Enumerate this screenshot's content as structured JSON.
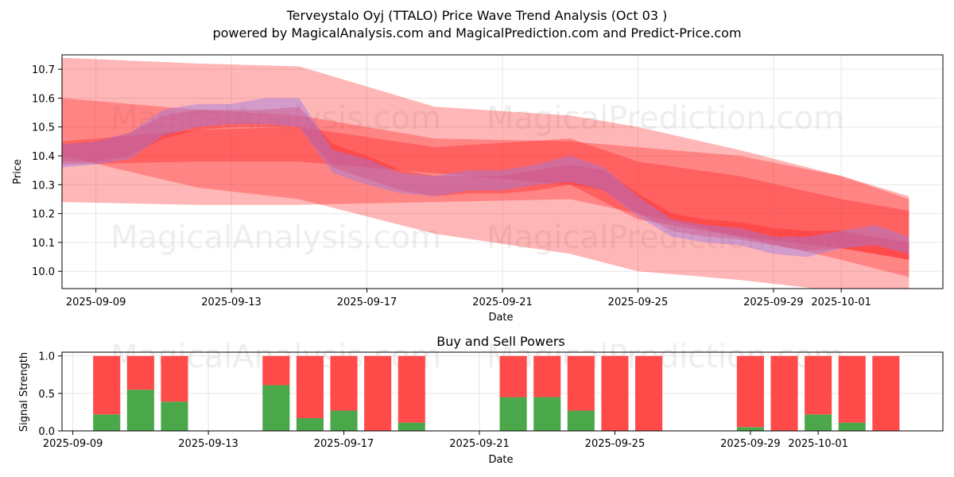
{
  "title_line1": "Terveystalo Oyj (TTALO) Price Wave Trend Analysis (Oct 03 )",
  "title_line2": "powered by MagicalAnalysis.com and MagicalPrediction.com and Predict-Price.com",
  "watermarks": [
    "MagicalAnalysis.com",
    "MagicalPrediction.com"
  ],
  "colors": {
    "band_red": "#ff2020",
    "band_purple": "#9b7be0",
    "buy": "#4aa84a",
    "sell": "#ff4a4a",
    "grid": "#e6e6e6"
  },
  "chart_data": [
    {
      "type": "area",
      "title": "",
      "xlabel": "Date",
      "ylabel": "Price",
      "x_range": [
        "2025-09-08",
        "2025-10-04"
      ],
      "ylim": [
        9.94,
        10.75
      ],
      "x_ticks": [
        "2025-09-09",
        "2025-09-13",
        "2025-09-17",
        "2025-09-21",
        "2025-09-25",
        "2025-09-29",
        "2025-10-01"
      ],
      "y_ticks": [
        "10.0",
        "10.1",
        "10.2",
        "10.3",
        "10.4",
        "10.5",
        "10.6",
        "10.7"
      ],
      "series": [
        {
          "name": "wide-band-1",
          "x": [
            "2025-09-08",
            "2025-09-12",
            "2025-09-15",
            "2025-09-19",
            "2025-09-23",
            "2025-09-25",
            "2025-09-28",
            "2025-10-01",
            "2025-10-03"
          ],
          "low": [
            10.24,
            10.23,
            10.23,
            10.24,
            10.25,
            10.2,
            10.12,
            10.04,
            9.98
          ],
          "high": [
            10.74,
            10.72,
            10.71,
            10.57,
            10.54,
            10.5,
            10.42,
            10.33,
            10.26
          ]
        },
        {
          "name": "wide-band-2",
          "x": [
            "2025-09-08",
            "2025-09-12",
            "2025-09-15",
            "2025-09-19",
            "2025-09-23",
            "2025-09-25",
            "2025-09-28",
            "2025-10-01",
            "2025-10-03"
          ],
          "low": [
            10.4,
            10.29,
            10.25,
            10.13,
            10.06,
            10.0,
            9.97,
            9.93,
            9.9
          ],
          "high": [
            10.6,
            10.56,
            10.54,
            10.46,
            10.45,
            10.43,
            10.4,
            10.33,
            10.25
          ]
        },
        {
          "name": "mid-band",
          "x": [
            "2025-09-08",
            "2025-09-12",
            "2025-09-15",
            "2025-09-19",
            "2025-09-23",
            "2025-09-25",
            "2025-09-28",
            "2025-10-01",
            "2025-10-03"
          ],
          "low": [
            10.37,
            10.38,
            10.38,
            10.34,
            10.3,
            10.18,
            10.12,
            10.08,
            10.04
          ],
          "high": [
            10.45,
            10.49,
            10.5,
            10.43,
            10.46,
            10.38,
            10.33,
            10.25,
            10.21
          ]
        },
        {
          "name": "price-wave-red",
          "x": [
            "2025-09-08",
            "2025-09-09",
            "2025-09-10",
            "2025-09-11",
            "2025-09-12",
            "2025-09-13",
            "2025-09-14",
            "2025-09-15",
            "2025-09-16",
            "2025-09-17",
            "2025-09-18",
            "2025-09-19",
            "2025-09-20",
            "2025-09-21",
            "2025-09-22",
            "2025-09-23",
            "2025-09-24",
            "2025-09-25",
            "2025-09-26",
            "2025-09-27",
            "2025-09-28",
            "2025-09-29",
            "2025-09-30",
            "2025-10-01",
            "2025-10-02",
            "2025-10-03"
          ],
          "low": [
            10.38,
            10.38,
            10.4,
            10.46,
            10.49,
            10.5,
            10.5,
            10.5,
            10.36,
            10.32,
            10.28,
            10.26,
            10.27,
            10.27,
            10.28,
            10.3,
            10.28,
            10.2,
            10.14,
            10.12,
            10.11,
            10.09,
            10.07,
            10.08,
            10.06,
            10.04
          ],
          "high": [
            10.44,
            10.45,
            10.48,
            10.54,
            10.56,
            10.56,
            10.56,
            10.57,
            10.44,
            10.4,
            10.35,
            10.33,
            10.33,
            10.33,
            10.35,
            10.37,
            10.35,
            10.27,
            10.2,
            10.18,
            10.17,
            10.15,
            10.14,
            10.14,
            10.12,
            10.1
          ]
        },
        {
          "name": "price-wave-purple",
          "x": [
            "2025-09-08",
            "2025-09-09",
            "2025-09-10",
            "2025-09-11",
            "2025-09-12",
            "2025-09-13",
            "2025-09-14",
            "2025-09-15",
            "2025-09-16",
            "2025-09-17",
            "2025-09-18",
            "2025-09-19",
            "2025-09-20",
            "2025-09-21",
            "2025-09-22",
            "2025-09-23",
            "2025-09-24",
            "2025-09-25",
            "2025-09-26",
            "2025-09-27",
            "2025-09-28",
            "2025-09-29",
            "2025-09-30",
            "2025-10-01",
            "2025-10-02",
            "2025-10-03"
          ],
          "low": [
            10.36,
            10.37,
            10.39,
            10.47,
            10.5,
            10.51,
            10.51,
            10.5,
            10.34,
            10.3,
            10.27,
            10.26,
            10.28,
            10.28,
            10.3,
            10.31,
            10.28,
            10.19,
            10.12,
            10.1,
            10.09,
            10.06,
            10.05,
            10.08,
            10.09,
            10.06
          ],
          "high": [
            10.44,
            10.45,
            10.48,
            10.56,
            10.58,
            10.58,
            10.6,
            10.6,
            10.42,
            10.39,
            10.34,
            10.33,
            10.35,
            10.35,
            10.37,
            10.4,
            10.36,
            10.26,
            10.18,
            10.16,
            10.15,
            10.12,
            10.12,
            10.14,
            10.16,
            10.12
          ]
        }
      ]
    },
    {
      "type": "bar",
      "title": "Buy and Sell Powers",
      "xlabel": "Date",
      "ylabel": "Signal Strength",
      "x_range": [
        "2025-09-08",
        "2025-10-04"
      ],
      "ylim": [
        0,
        1.05
      ],
      "x_ticks": [
        "2025-09-09",
        "2025-09-13",
        "2025-09-17",
        "2025-09-21",
        "2025-09-25",
        "2025-09-29",
        "2025-10-01"
      ],
      "y_ticks": [
        "0.0",
        "0.5",
        "1.0"
      ],
      "categories": [
        "2025-09-10",
        "2025-09-11",
        "2025-09-12",
        "2025-09-15",
        "2025-09-16",
        "2025-09-17",
        "2025-09-18",
        "2025-09-19",
        "2025-09-22",
        "2025-09-23",
        "2025-09-24",
        "2025-09-25",
        "2025-09-26",
        "2025-09-29",
        "2025-09-30",
        "2025-10-01",
        "2025-10-02",
        "2025-10-03"
      ],
      "series": [
        {
          "name": "Buy",
          "values": [
            0.22,
            0.55,
            0.39,
            0.61,
            0.17,
            0.27,
            0.0,
            0.11,
            0.45,
            0.45,
            0.27,
            0.0,
            0.0,
            0.05,
            0.0,
            0.22,
            0.11,
            0.0
          ]
        },
        {
          "name": "Sell",
          "values": [
            0.78,
            0.45,
            0.61,
            0.39,
            0.83,
            0.73,
            1.0,
            0.89,
            0.55,
            0.55,
            0.73,
            1.0,
            1.0,
            0.95,
            1.0,
            0.78,
            0.89,
            1.0
          ]
        }
      ]
    }
  ]
}
